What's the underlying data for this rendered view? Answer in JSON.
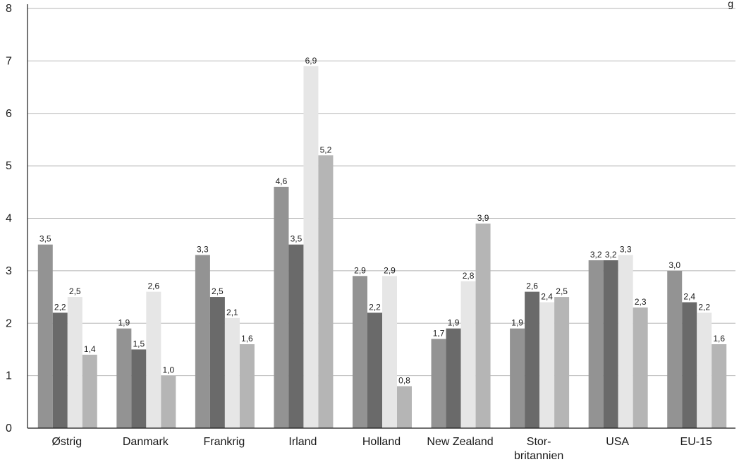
{
  "chart_data": {
    "type": "bar",
    "categories": [
      "Østrig",
      "Danmark",
      "Frankrig",
      "Irland",
      "Holland",
      "New Zealand",
      "Stor-\nbritannien",
      "USA",
      "EU-15"
    ],
    "series": [
      {
        "values": [
          3.5,
          1.9,
          3.3,
          4.6,
          2.9,
          1.7,
          1.9,
          3.2,
          3.0
        ],
        "labels": [
          "3,5",
          "1,9",
          "3,3",
          "4,6",
          "2,9",
          "1,7",
          "1,9",
          "3,2",
          "3,0"
        ]
      },
      {
        "values": [
          2.2,
          1.5,
          2.5,
          3.5,
          2.2,
          1.9,
          2.6,
          3.2,
          2.4
        ],
        "labels": [
          "2,2",
          "1,5",
          "2,5",
          "3,5",
          "2,2",
          "1,9",
          "2,6",
          "3,2",
          "2,4"
        ]
      },
      {
        "values": [
          2.5,
          2.6,
          2.1,
          6.9,
          2.9,
          2.8,
          2.4,
          3.3,
          2.2
        ],
        "labels": [
          "2,5",
          "2,6",
          "2,1",
          "6,9",
          "2,9",
          "2,8",
          "2,4",
          "3,3",
          "2,2"
        ]
      },
      {
        "values": [
          1.4,
          1.0,
          1.6,
          5.2,
          0.8,
          3.9,
          2.5,
          2.3,
          1.6
        ],
        "labels": [
          "1,4",
          "1,0",
          "1,6",
          "5,2",
          "0,8",
          "3,9",
          "2,5",
          "2,3",
          "1,6"
        ]
      }
    ],
    "series_colors": [
      "#939393",
      "#6a6a6a",
      "#e6e6e6",
      "#b5b5b5"
    ],
    "ylim": [
      0,
      8
    ],
    "yticks": [
      0,
      1,
      2,
      3,
      4,
      5,
      6,
      7,
      8
    ],
    "grid": true,
    "corner_text": "g"
  }
}
